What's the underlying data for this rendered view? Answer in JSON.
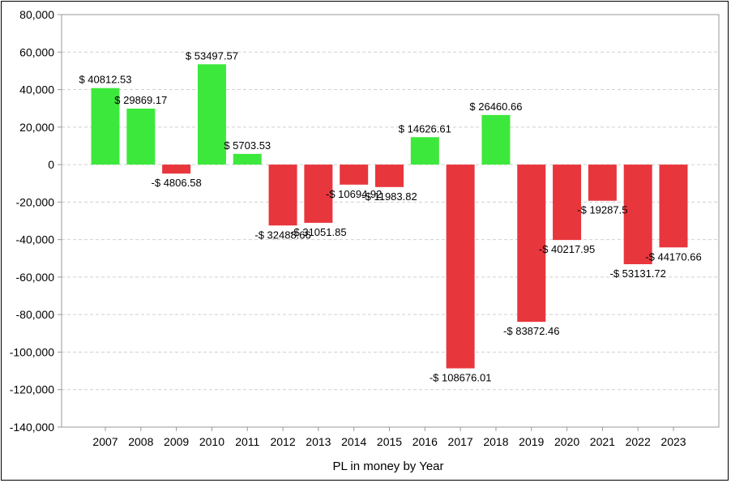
{
  "chart_data": {
    "type": "bar",
    "xlabel": "PL in money by Year",
    "ylabel": "",
    "ylim": [
      -140000,
      80000
    ],
    "yticks": [
      80000,
      60000,
      40000,
      20000,
      0,
      -20000,
      -40000,
      -60000,
      -80000,
      -100000,
      -120000,
      -140000
    ],
    "ytick_labels": [
      "80,000",
      "60,000",
      "40,000",
      "20,000",
      "0",
      "-20,000",
      "-40,000",
      "-60,000",
      "-80,000",
      "-100,000",
      "-120,000",
      "-140,000"
    ],
    "grid": "horizontal dashed",
    "categories": [
      "2007",
      "2008",
      "2009",
      "2010",
      "2011",
      "2012",
      "2013",
      "2014",
      "2015",
      "2016",
      "2017",
      "2018",
      "2019",
      "2020",
      "2021",
      "2022",
      "2023"
    ],
    "values": [
      40812.53,
      29869.17,
      -4806.58,
      53497.57,
      5703.53,
      -32488.66,
      -31051.85,
      -10694.92,
      -11983.82,
      14626.61,
      -108676.01,
      26460.66,
      -83872.46,
      -40217.95,
      -19287.5,
      -53131.72,
      -44170.66
    ],
    "data_labels": [
      "$ 40812.53",
      "$ 29869.17",
      "-$ 4806.58",
      "$ 53497.57",
      "$ 5703.53",
      "-$ 32488.66",
      "-$ 31051.85",
      "-$ 10694.92",
      "-$ 11983.82",
      "$ 14626.61",
      "-$ 108676.01",
      "$ 26460.66",
      "-$ 83872.46",
      "-$ 40217.95",
      "-$ 19287.5",
      "-$ 53131.72",
      "-$ 44170.66"
    ],
    "colors": {
      "positive": "#3de83d",
      "negative": "#e8363d",
      "grid": "#d0d0d0",
      "axis": "#999999"
    }
  }
}
